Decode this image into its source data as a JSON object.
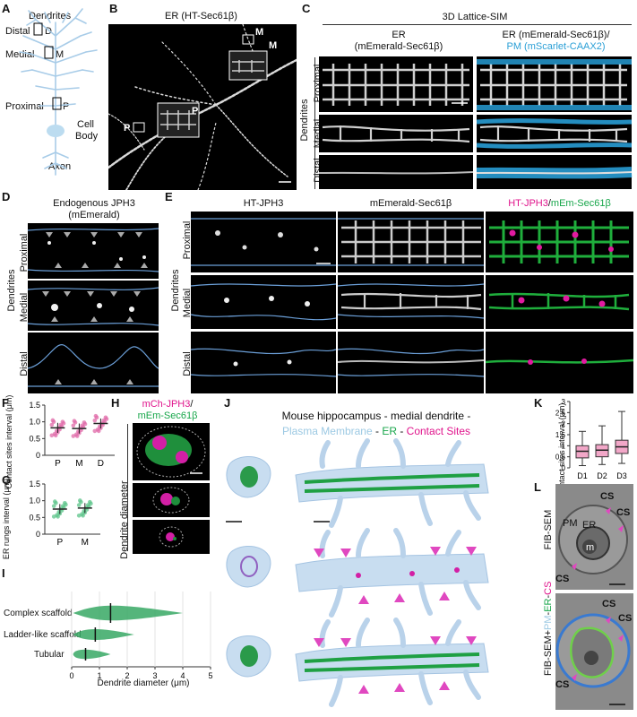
{
  "panels": {
    "A": {
      "letter": "A",
      "dendrites": "Dendrites",
      "distal": "Distal",
      "d": "D",
      "medial": "Medial",
      "m": "M",
      "proximal": "Proximal",
      "p": "P",
      "cell": "Cell",
      "body": "Body",
      "axon": "Axon"
    },
    "B": {
      "letter": "B",
      "title": "ER (HT-Sec61β)",
      "m1": "M",
      "m2": "M",
      "p1": "P",
      "p2": "P"
    },
    "C": {
      "letter": "C",
      "header": "3D Lattice-SIM",
      "col1_l1": "ER",
      "col1_l2": "(mEmerald-Sec61β)",
      "col2_l1": "ER (mEmerald-Sec61β)/",
      "col2_l2": "PM (mScarlet-CAAX2)",
      "side": "Dendrites",
      "rows": [
        "Proximal",
        "Medial",
        "Distal"
      ]
    },
    "D": {
      "letter": "D",
      "title_l1": "Endogenous JPH3",
      "title_l2": "(mEmerald)",
      "side": "Dendrites",
      "rows": [
        "Proximal",
        "Medial",
        "Distal"
      ]
    },
    "E": {
      "letter": "E",
      "col1": "HT-JPH3",
      "col2": "mEmerald-Sec61β",
      "col3_a": "HT-JPH3",
      "col3_b": "/",
      "col3_c": "mEm-Sec61β",
      "side": "Dendrites",
      "rows": [
        "Proximal",
        "Medial",
        "Distal"
      ]
    },
    "F": {
      "letter": "F",
      "ylabel": "Contact sites interval (μm)"
    },
    "G": {
      "letter": "G",
      "ylabel": "ER rungs interval (μm)"
    },
    "H": {
      "letter": "H",
      "title_a": "mCh-JPH3",
      "title_b": "/",
      "title_c": "mEm-Sec61β",
      "side": "Dendrite diameter"
    },
    "I": {
      "letter": "I",
      "categories": [
        "Complex scaffold",
        "Ladder-like scaffold",
        "Tubular"
      ],
      "xlabel": "Dendrite diameter (μm)"
    },
    "J": {
      "letter": "J",
      "title": "Mouse hippocampus - medial dendrite -",
      "leg_pm": "Plasma Membrane",
      "leg_sep1": " - ",
      "leg_er": "ER",
      "leg_sep2": " - ",
      "leg_cs": "Contact Sites"
    },
    "K": {
      "letter": "K",
      "ylabel": "Contact sites interval (μm)"
    },
    "L": {
      "letter": "L",
      "side1": "FIB-SEM",
      "side2_a": "FIB-SEM+",
      "side2_b": "PM",
      "side2_c": "-",
      "side2_d": "ER",
      "side2_e": "-",
      "side2_f": "CS",
      "pm": "PM",
      "er": "ER",
      "m": "m",
      "cs": "CS"
    }
  },
  "chart_data": [
    {
      "type": "scatter",
      "panel": "F",
      "categories": [
        "P",
        "M",
        "D"
      ],
      "ylabel": "Contact sites interval (μm)",
      "ylim": [
        0,
        1.5
      ],
      "yticks": [
        "0",
        "0.5",
        "1.0",
        "1.5"
      ],
      "means": [
        0.82,
        0.8,
        0.95
      ]
    },
    {
      "type": "scatter",
      "panel": "G",
      "categories": [
        "P",
        "M"
      ],
      "ylabel": "ER rungs interval (μm)",
      "ylim": [
        0,
        1.5
      ],
      "yticks": [
        "0",
        "0.5",
        "1.0",
        "1.5"
      ],
      "means": [
        0.75,
        0.78
      ]
    },
    {
      "type": "violin",
      "panel": "I",
      "categories": [
        "Complex scaffold",
        "Ladder-like scaffold",
        "Tubular"
      ],
      "xlabel": "Dendrite diameter (μm)",
      "xlim": [
        0,
        5
      ],
      "xticks": [
        "0",
        "1",
        "2",
        "3",
        "4",
        "5"
      ],
      "medians": [
        1.4,
        0.85,
        0.5
      ]
    },
    {
      "type": "box",
      "panel": "K",
      "categories": [
        "D1",
        "D2",
        "D3"
      ],
      "ylabel": "Contact sites interval (μm)",
      "ylim": [
        0,
        3
      ],
      "yticks": [
        "0",
        "0.5",
        "1",
        "1.5",
        "2",
        "2.5",
        "3"
      ],
      "medians": [
        0.75,
        0.8,
        0.95
      ],
      "q1": [
        0.45,
        0.5,
        0.65
      ],
      "q3": [
        1.0,
        1.05,
        1.25
      ],
      "whisker_low": [
        0.1,
        0.15,
        0.2
      ],
      "whisker_high": [
        1.65,
        1.9,
        2.55
      ]
    }
  ]
}
